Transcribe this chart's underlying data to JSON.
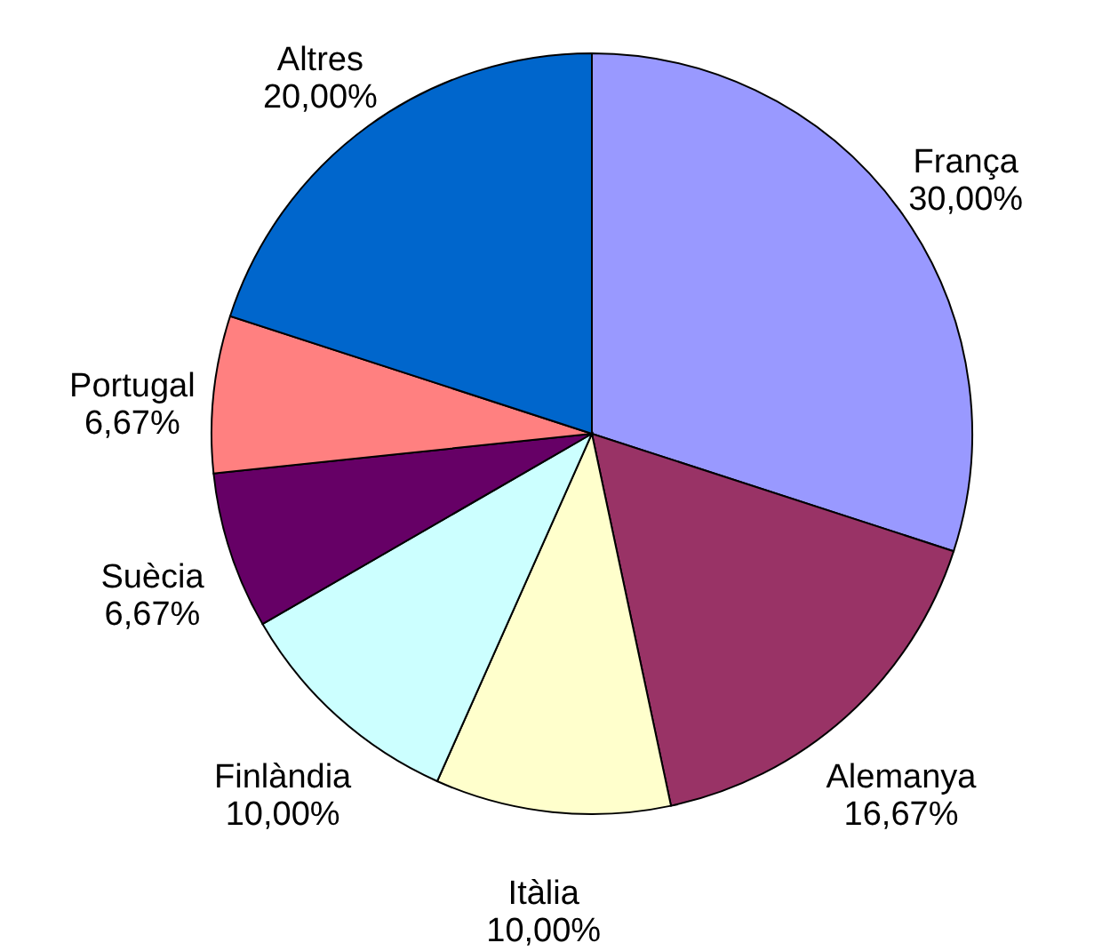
{
  "chart_data": {
    "type": "pie",
    "categories": [
      "França",
      "Alemanya",
      "Itàlia",
      "Finlàndia",
      "Suècia",
      "Portugal",
      "Altres"
    ],
    "values": [
      30.0,
      16.67,
      10.0,
      10.0,
      6.67,
      6.67,
      20.0
    ],
    "value_labels": [
      "30,00%",
      "16,67%",
      "10,00%",
      "10,00%",
      "6,67%",
      "6,67%",
      "20,00%"
    ],
    "colors": [
      "#9999ff",
      "#993366",
      "#ffffcc",
      "#ccffff",
      "#660066",
      "#ff8080",
      "#0066cc"
    ]
  }
}
